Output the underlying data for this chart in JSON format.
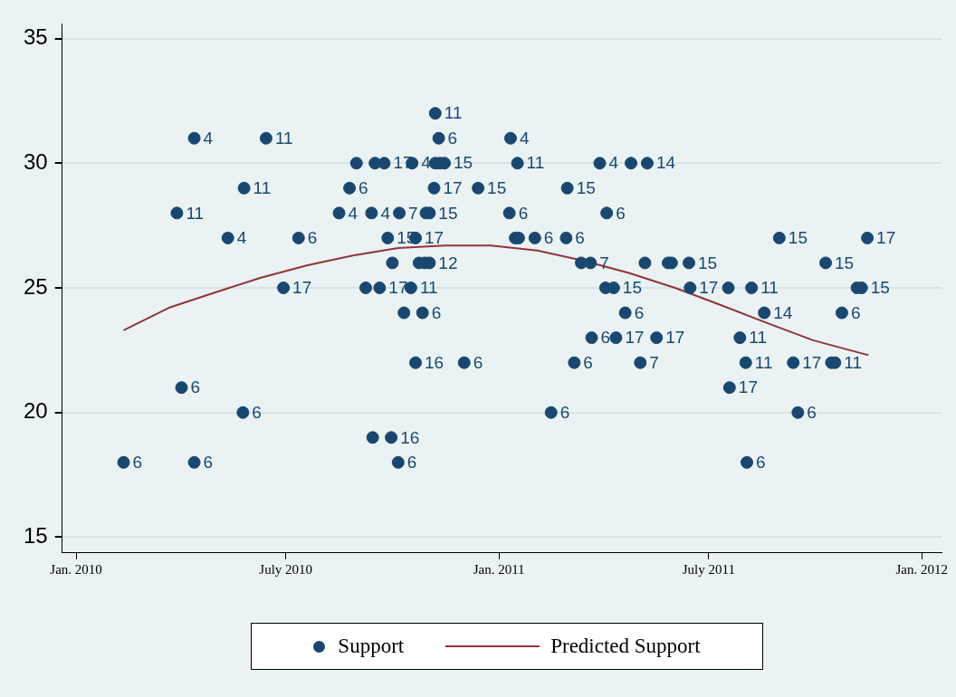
{
  "chart_data": {
    "type": "scatter",
    "xlim": [
      "2009-12-20",
      "2012-01-18"
    ],
    "xticks": [
      {
        "value": "2010-01-01",
        "label": "Jan. 2010"
      },
      {
        "value": "2010-07-01",
        "label": "July 2010"
      },
      {
        "value": "2011-01-01",
        "label": "Jan. 2011"
      },
      {
        "value": "2011-07-01",
        "label": "July 2011"
      },
      {
        "value": "2012-01-01",
        "label": "Jan. 2012"
      }
    ],
    "ylim": [
      14.4,
      35.6
    ],
    "yticks": [
      15,
      20,
      25,
      30,
      35
    ],
    "grid": "y",
    "legend": "bottom",
    "marker": "circle",
    "series": [
      {
        "name": "Support",
        "color": "#1a476f",
        "x": [
          "2010-11-07",
          "2010-04-13",
          "2010-06-14",
          "2010-11-10",
          "2011-01-11",
          "2010-08-31",
          "2010-09-16",
          "2010-09-24",
          "2010-10-18",
          "2010-11-07",
          "2010-11-11",
          "2010-11-15",
          "2011-01-17",
          "2011-03-29",
          "2011-04-25",
          "2011-05-09",
          "2010-05-26",
          "2010-08-25",
          "2010-11-06",
          "2010-12-14",
          "2011-03-01",
          "2010-03-29",
          "2010-08-16",
          "2010-09-13",
          "2010-10-07",
          "2010-10-30",
          "2010-11-02",
          "2011-01-10",
          "2011-04-04",
          "2010-05-12",
          "2010-07-12",
          "2010-09-27",
          "2010-10-21",
          "2011-01-15",
          "2011-01-18",
          "2011-02-01",
          "2011-02-28",
          "2011-08-31",
          "2011-11-15",
          "2010-10-01",
          "2010-10-24",
          "2010-10-29",
          "2010-11-02",
          "2011-03-13",
          "2011-03-21",
          "2011-05-07",
          "2011-05-27",
          "2011-05-30",
          "2011-06-14",
          "2011-10-10",
          "2010-06-29",
          "2010-09-08",
          "2010-09-20",
          "2010-10-17",
          "2011-04-03",
          "2011-04-10",
          "2011-06-15",
          "2011-07-18",
          "2011-08-07",
          "2011-11-06",
          "2011-11-10",
          "2010-10-11",
          "2010-10-27",
          "2011-04-20",
          "2011-08-18",
          "2011-10-24",
          "2011-03-22",
          "2011-04-12",
          "2011-05-17",
          "2011-07-28",
          "2010-10-21",
          "2010-12-02",
          "2011-03-07",
          "2011-05-03",
          "2011-08-02",
          "2011-09-12",
          "2011-10-15",
          "2011-10-18",
          "2010-04-02",
          "2011-07-19",
          "2010-05-25",
          "2011-02-15",
          "2011-09-16",
          "2010-09-14",
          "2010-09-30",
          "2010-02-11",
          "2010-04-13",
          "2010-10-06",
          "2011-08-03"
        ],
        "values": [
          32,
          31,
          31,
          31,
          31,
          30,
          30,
          30,
          30,
          30,
          30,
          30,
          30,
          30,
          30,
          30,
          29,
          29,
          29,
          29,
          29,
          28,
          28,
          28,
          28,
          28,
          28,
          28,
          28,
          27,
          27,
          27,
          27,
          27,
          27,
          27,
          27,
          27,
          27,
          26,
          26,
          26,
          26,
          26,
          26,
          26,
          26,
          26,
          26,
          26,
          25,
          25,
          25,
          25,
          25,
          25,
          25,
          25,
          25,
          25,
          25,
          24,
          24,
          24,
          24,
          24,
          23,
          23,
          23,
          23,
          22,
          22,
          22,
          22,
          22,
          22,
          22,
          22,
          21,
          21,
          20,
          20,
          20,
          19,
          19,
          18,
          18,
          18,
          18
        ]
      },
      {
        "name": "Predicted Support",
        "type": "line",
        "color": "#90353b",
        "marker": "none",
        "x": [
          "2010-02-11",
          "2010-03-22",
          "2010-04-30",
          "2010-06-09",
          "2010-07-19",
          "2010-08-28",
          "2010-10-06",
          "2010-11-15",
          "2010-12-25",
          "2011-02-03",
          "2011-03-14",
          "2011-04-23",
          "2011-06-02",
          "2011-07-12",
          "2011-08-20",
          "2011-09-29",
          "2011-11-16"
        ],
        "values": [
          23.3,
          24.2,
          24.8,
          25.4,
          25.9,
          26.3,
          26.6,
          26.7,
          26.7,
          26.5,
          26.1,
          25.6,
          25.0,
          24.3,
          23.6,
          22.9,
          22.3
        ]
      }
    ],
    "annotations": [
      {
        "text": "11",
        "x": "2010-11-07",
        "y": 32
      },
      {
        "text": "4",
        "x": "2010-04-13",
        "y": 31
      },
      {
        "text": "11",
        "x": "2010-06-14",
        "y": 31
      },
      {
        "text": "6",
        "x": "2010-11-10",
        "y": 31
      },
      {
        "text": "4",
        "x": "2011-01-11",
        "y": 31
      },
      {
        "text": "17",
        "x": "2010-09-24",
        "y": 30
      },
      {
        "text": "4",
        "x": "2010-10-18",
        "y": 30
      },
      {
        "text": "15",
        "x": "2010-11-15",
        "y": 30
      },
      {
        "text": "11",
        "x": "2011-01-17",
        "y": 30
      },
      {
        "text": "4",
        "x": "2011-03-29",
        "y": 30
      },
      {
        "text": "14",
        "x": "2011-05-09",
        "y": 30
      },
      {
        "text": "11",
        "x": "2010-05-26",
        "y": 29
      },
      {
        "text": "6",
        "x": "2010-08-25",
        "y": 29
      },
      {
        "text": "17",
        "x": "2010-11-06",
        "y": 29
      },
      {
        "text": "15",
        "x": "2010-12-14",
        "y": 29
      },
      {
        "text": "15",
        "x": "2011-03-01",
        "y": 29
      },
      {
        "text": "11",
        "x": "2010-03-29",
        "y": 28
      },
      {
        "text": "4",
        "x": "2010-08-16",
        "y": 28
      },
      {
        "text": "4",
        "x": "2010-09-13",
        "y": 28
      },
      {
        "text": "7",
        "x": "2010-10-07",
        "y": 28
      },
      {
        "text": "15",
        "x": "2010-11-02",
        "y": 28
      },
      {
        "text": "6",
        "x": "2011-01-10",
        "y": 28
      },
      {
        "text": "6",
        "x": "2011-04-04",
        "y": 28
      },
      {
        "text": "4",
        "x": "2010-05-12",
        "y": 27
      },
      {
        "text": "6",
        "x": "2010-07-12",
        "y": 27
      },
      {
        "text": "15",
        "x": "2010-09-27",
        "y": 27
      },
      {
        "text": "17",
        "x": "2010-10-21",
        "y": 27
      },
      {
        "text": "6",
        "x": "2011-02-01",
        "y": 27
      },
      {
        "text": "6",
        "x": "2011-02-28",
        "y": 27
      },
      {
        "text": "15",
        "x": "2011-08-31",
        "y": 27
      },
      {
        "text": "17",
        "x": "2011-11-15",
        "y": 27
      },
      {
        "text": "12",
        "x": "2010-11-02",
        "y": 26
      },
      {
        "text": "7",
        "x": "2011-03-21",
        "y": 26
      },
      {
        "text": "15",
        "x": "2011-06-14",
        "y": 26
      },
      {
        "text": "15",
        "x": "2011-10-10",
        "y": 26
      },
      {
        "text": "17",
        "x": "2010-06-29",
        "y": 25
      },
      {
        "text": "17",
        "x": "2010-09-20",
        "y": 25
      },
      {
        "text": "11",
        "x": "2010-10-17",
        "y": 25
      },
      {
        "text": "15",
        "x": "2011-04-10",
        "y": 25
      },
      {
        "text": "17",
        "x": "2011-06-15",
        "y": 25
      },
      {
        "text": "11",
        "x": "2011-08-07",
        "y": 25
      },
      {
        "text": "15",
        "x": "2011-11-10",
        "y": 25
      },
      {
        "text": "6",
        "x": "2010-10-27",
        "y": 24
      },
      {
        "text": "6",
        "x": "2011-04-20",
        "y": 24
      },
      {
        "text": "14",
        "x": "2011-08-18",
        "y": 24
      },
      {
        "text": "6",
        "x": "2011-10-24",
        "y": 24
      },
      {
        "text": "6",
        "x": "2011-03-22",
        "y": 23
      },
      {
        "text": "17",
        "x": "2011-04-12",
        "y": 23
      },
      {
        "text": "17",
        "x": "2011-05-17",
        "y": 23
      },
      {
        "text": "11",
        "x": "2011-07-28",
        "y": 23
      },
      {
        "text": "16",
        "x": "2010-10-21",
        "y": 22
      },
      {
        "text": "6",
        "x": "2010-12-02",
        "y": 22
      },
      {
        "text": "6",
        "x": "2011-03-07",
        "y": 22
      },
      {
        "text": "7",
        "x": "2011-05-03",
        "y": 22
      },
      {
        "text": "11",
        "x": "2011-08-02",
        "y": 22
      },
      {
        "text": "17",
        "x": "2011-09-12",
        "y": 22
      },
      {
        "text": "11",
        "x": "2011-10-18",
        "y": 22
      },
      {
        "text": "6",
        "x": "2010-04-02",
        "y": 21
      },
      {
        "text": "17",
        "x": "2011-07-19",
        "y": 21
      },
      {
        "text": "6",
        "x": "2010-05-25",
        "y": 20
      },
      {
        "text": "6",
        "x": "2011-02-15",
        "y": 20
      },
      {
        "text": "6",
        "x": "2011-09-16",
        "y": 20
      },
      {
        "text": "16",
        "x": "2010-09-30",
        "y": 19
      },
      {
        "text": "6",
        "x": "2010-02-11",
        "y": 18
      },
      {
        "text": "6",
        "x": "2010-04-13",
        "y": 18
      },
      {
        "text": "6",
        "x": "2010-10-06",
        "y": 18
      },
      {
        "text": "6",
        "x": "2011-08-03",
        "y": 18
      }
    ]
  }
}
